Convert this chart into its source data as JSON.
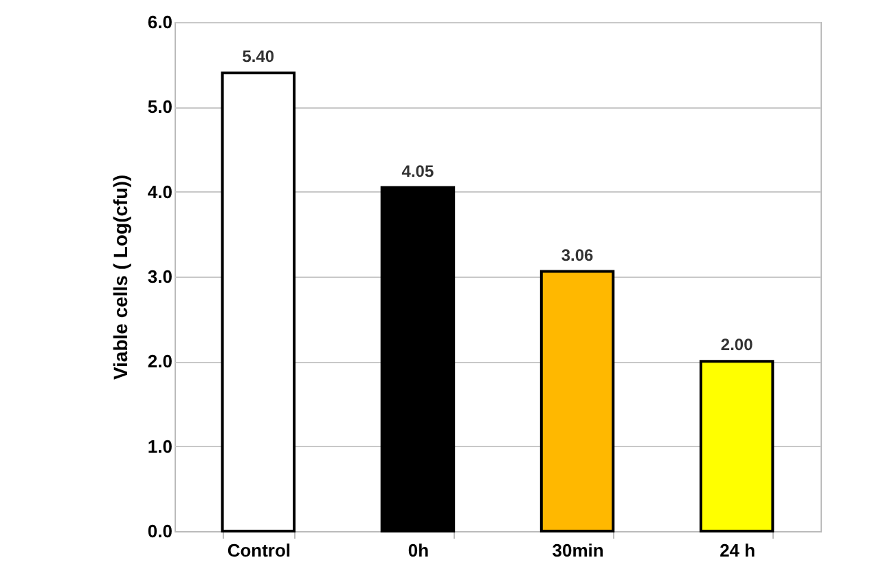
{
  "chart_data": {
    "type": "bar",
    "ylabel": "Viable cells ( Log(cfu))",
    "categories": [
      "Control",
      "0h",
      "30min",
      "24 h"
    ],
    "values": [
      5.4,
      4.05,
      3.06,
      2.0
    ],
    "colors": [
      "#ffffff",
      "#000000",
      "#ffb800",
      "#ffff00"
    ],
    "value_labels": [
      "5.40",
      "4.05",
      "3.06",
      "2.00"
    ],
    "ylim": [
      0,
      6
    ],
    "yticks": [
      {
        "value": 0,
        "label": "0.0"
      },
      {
        "value": 1,
        "label": "1.0"
      },
      {
        "value": 2,
        "label": "2.0"
      },
      {
        "value": 3,
        "label": "3.0"
      },
      {
        "value": 4,
        "label": "4.0"
      },
      {
        "value": 5,
        "label": "5.0"
      },
      {
        "value": 6,
        "label": "6.0"
      }
    ],
    "grid": "y"
  }
}
